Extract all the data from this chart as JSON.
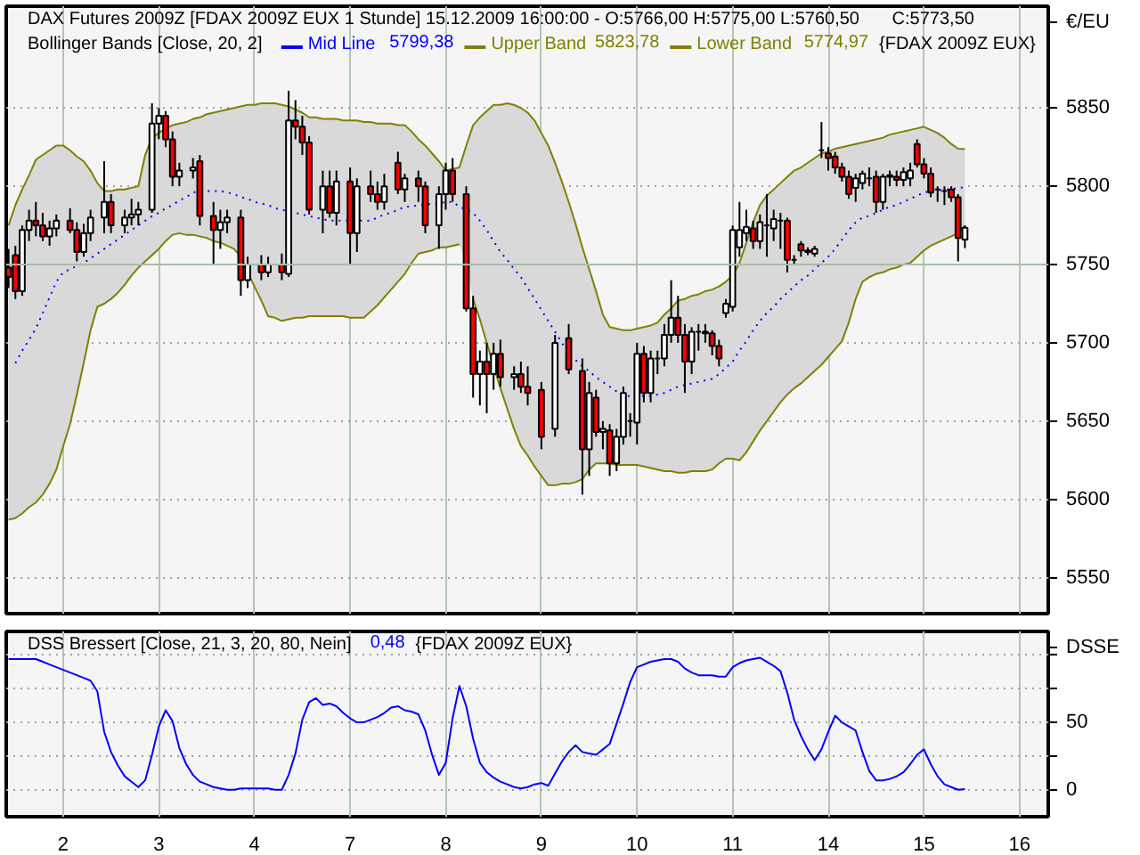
{
  "chart_data": [
    {
      "type": "candlestick",
      "title": "DAX Futures 2009Z [FDAX 2009Z EUX  1 Stunde] 15.12.2009 16:00:00 - O:5766,00 H:5775,00 L:5760,50",
      "subtitle": "Bollinger Bands [Close, 20, 2]",
      "ylabel": "€/EU",
      "annotations": [
        "C:5773,50",
        "5799,38",
        "5823,78",
        "5774,97",
        "{FDAX 2009Z EUX}"
      ],
      "categories": [
        null,
        null,
        null,
        null,
        null,
        null,
        null,
        null,
        "2",
        null,
        null,
        null,
        null,
        null,
        null,
        null,
        null,
        null,
        null,
        null,
        null,
        null,
        "3",
        null,
        null,
        null,
        null,
        null,
        null,
        null,
        null,
        null,
        null,
        null,
        null,
        null,
        "4",
        null,
        null,
        null,
        null,
        null,
        null,
        null,
        null,
        null,
        null,
        null,
        null,
        null,
        "7",
        null,
        null,
        null,
        null,
        null,
        null,
        null,
        null,
        null,
        null,
        null,
        null,
        null,
        "8",
        null,
        null,
        null,
        null,
        null,
        null,
        null,
        null,
        null,
        null,
        null,
        null,
        null,
        "9",
        null,
        null,
        null,
        null,
        null,
        null,
        null,
        null,
        null,
        null,
        null,
        null,
        null,
        "10",
        null,
        null,
        null,
        null,
        null,
        null,
        null,
        null,
        null,
        null,
        null,
        null,
        null,
        "11",
        null,
        null,
        null,
        null,
        null,
        null,
        null,
        null,
        null,
        null,
        null,
        null,
        null,
        "14",
        null,
        null,
        null,
        null,
        null,
        null,
        null,
        null,
        null,
        null,
        null,
        null,
        null,
        "15",
        null,
        null,
        null,
        null,
        null,
        null,
        null,
        null,
        null,
        null,
        null,
        null,
        null,
        "16",
        null,
        null,
        null
      ],
      "ohlc": [
        [
          5748,
          5760,
          5735,
          5742
        ],
        [
          5756,
          5762,
          5728,
          5733
        ],
        [
          5733,
          5775,
          5730,
          5772
        ],
        [
          5772,
          5785,
          5765,
          5778
        ],
        [
          5778,
          5790,
          5768,
          5775
        ],
        [
          5775,
          5783,
          5765,
          5768
        ],
        [
          5768,
          5778,
          5762,
          5773
        ],
        [
          5773,
          5782,
          5768,
          5778
        ],
        null,
        [
          5778,
          5786,
          5770,
          5772
        ],
        [
          5772,
          5777,
          5752,
          5758
        ],
        [
          5758,
          5776,
          5755,
          5770
        ],
        [
          5770,
          5785,
          5765,
          5780
        ],
        null,
        [
          5780,
          5816,
          5770,
          5790
        ],
        [
          5790,
          5795,
          5770,
          5775
        ],
        null,
        [
          5775,
          5785,
          5770,
          5780
        ],
        [
          5780,
          5792,
          5775,
          5782
        ],
        [
          5782,
          5790,
          5775,
          5785
        ],
        null,
        [
          5785,
          5853,
          5783,
          5840
        ],
        [
          5840,
          5850,
          5830,
          5845
        ],
        [
          5845,
          5848,
          5825,
          5830
        ],
        [
          5830,
          5835,
          5800,
          5806
        ],
        [
          5806,
          5815,
          5800,
          5810
        ],
        null,
        [
          5810,
          5818,
          5805,
          5812
        ],
        [
          5816,
          5820,
          5775,
          5781
        ],
        null,
        [
          5781,
          5790,
          5750,
          5772
        ],
        [
          5772,
          5785,
          5760,
          5777
        ],
        [
          5777,
          5785,
          5770,
          5780
        ],
        null,
        [
          5780,
          5785,
          5730,
          5740
        ],
        [
          5740,
          5755,
          5735,
          5750
        ],
        null,
        [
          5750,
          5756,
          5740,
          5745
        ],
        [
          5745,
          5755,
          5742,
          5750
        ],
        null,
        [
          5750,
          5757,
          5740,
          5745
        ],
        [
          5744,
          5861,
          5742,
          5842
        ],
        [
          5842,
          5855,
          5830,
          5838
        ],
        [
          5838,
          5845,
          5820,
          5828
        ],
        [
          5828,
          5832,
          5782,
          5785
        ],
        null,
        [
          5785,
          5810,
          5770,
          5800
        ],
        [
          5800,
          5810,
          5780,
          5783
        ],
        [
          5783,
          5810,
          5775,
          5803
        ],
        null,
        [
          5803,
          5812,
          5750,
          5770
        ],
        [
          5770,
          5805,
          5758,
          5800
        ],
        null,
        [
          5800,
          5810,
          5790,
          5795
        ],
        [
          5795,
          5803,
          5785,
          5790
        ],
        [
          5790,
          5808,
          5785,
          5800
        ],
        null,
        [
          5815,
          5822,
          5795,
          5798
        ],
        [
          5798,
          5808,
          5790,
          5805
        ],
        null,
        [
          5805,
          5810,
          5790,
          5800
        ],
        [
          5800,
          5803,
          5770,
          5775
        ],
        null,
        [
          5775,
          5800,
          5760,
          5795
        ],
        [
          5795,
          5815,
          5785,
          5810
        ],
        [
          5810,
          5818,
          5790,
          5795
        ],
        null,
        [
          5795,
          5800,
          5720,
          5722
        ],
        [
          5722,
          5730,
          5665,
          5680
        ],
        [
          5680,
          5695,
          5660,
          5688
        ],
        [
          5688,
          5700,
          5655,
          5680
        ],
        [
          5680,
          5700,
          5670,
          5693
        ],
        [
          5693,
          5702,
          5672,
          5678
        ],
        null,
        [
          5678,
          5685,
          5670,
          5680
        ],
        [
          5680,
          5688,
          5668,
          5672
        ],
        [
          5672,
          5685,
          5660,
          5668
        ],
        null,
        [
          5670,
          5675,
          5632,
          5640
        ],
        null,
        [
          5645,
          5705,
          5640,
          5700
        ],
        null,
        [
          5703,
          5712,
          5680,
          5683
        ],
        null,
        [
          5682,
          5690,
          5603,
          5632
        ],
        [
          5632,
          5675,
          5615,
          5668
        ],
        [
          5665,
          5670,
          5640,
          5643
        ],
        [
          5643,
          5650,
          5632,
          5645
        ],
        [
          5644,
          5648,
          5615,
          5623
        ],
        [
          5623,
          5645,
          5618,
          5640
        ],
        [
          5640,
          5672,
          5635,
          5668
        ],
        [
          5650,
          5655,
          5640,
          5650
        ],
        [
          5649,
          5700,
          5635,
          5693
        ],
        [
          5693,
          5698,
          5662,
          5668
        ],
        [
          5668,
          5695,
          5662,
          5690
        ],
        [
          5690,
          5695,
          5680,
          5690
        ],
        [
          5690,
          5712,
          5685,
          5705
        ],
        [
          5705,
          5740,
          5700,
          5716
        ],
        [
          5716,
          5730,
          5700,
          5705
        ],
        [
          5705,
          5712,
          5668,
          5688
        ],
        [
          5688,
          5710,
          5680,
          5707
        ],
        [
          5707,
          5712,
          5695,
          5707
        ],
        [
          5707,
          5712,
          5700,
          5706
        ],
        [
          5706,
          5708,
          5692,
          5698
        ],
        [
          5698,
          5702,
          5685,
          5690
        ],
        [
          5719,
          5728,
          5716,
          5725
        ],
        [
          5723,
          5775,
          5720,
          5772
        ],
        [
          5761,
          5790,
          5755,
          5772
        ],
        [
          5770,
          5785,
          5765,
          5774
        ],
        [
          5773,
          5778,
          5760,
          5765
        ],
        [
          5765,
          5782,
          5760,
          5777
        ],
        [
          5775,
          5795,
          5755,
          5775
        ],
        [
          5773,
          5785,
          5765,
          5779
        ],
        [
          5778,
          5783,
          5760,
          5778
        ],
        [
          5778,
          5780,
          5745,
          5753
        ],
        [
          5753,
          5756,
          5750,
          5753
        ],
        [
          5763,
          5765,
          5755,
          5759
        ],
        [
          5759,
          5761,
          5756,
          5758
        ],
        [
          5757,
          5762,
          5755,
          5760
        ],
        [
          5823,
          5841,
          5818,
          5823
        ],
        [
          5821,
          5825,
          5810,
          5818
        ],
        [
          5819,
          5822,
          5808,
          5812
        ],
        [
          5812,
          5815,
          5803,
          5806
        ],
        [
          5806,
          5810,
          5792,
          5795
        ],
        [
          5799,
          5808,
          5790,
          5805
        ],
        [
          5802,
          5810,
          5798,
          5808
        ],
        [
          5805,
          5812,
          5800,
          5805
        ],
        [
          5806,
          5810,
          5783,
          5790
        ],
        [
          5790,
          5808,
          5785,
          5806
        ],
        [
          5806,
          5810,
          5800,
          5807
        ],
        [
          5806,
          5810,
          5800,
          5804
        ],
        [
          5804,
          5812,
          5800,
          5809
        ],
        [
          5805,
          5815,
          5800,
          5810
        ],
        [
          5827,
          5830,
          5812,
          5814
        ],
        [
          5814,
          5818,
          5805,
          5808
        ],
        [
          5808,
          5812,
          5793,
          5796
        ],
        [
          5798,
          5800,
          5790,
          5798
        ],
        [
          5797,
          5800,
          5788,
          5797
        ],
        [
          5798,
          5800,
          5790,
          5793
        ],
        [
          5793,
          5795,
          5752,
          5767
        ],
        [
          5766,
          5775,
          5760.5,
          5773.5
        ],
        null,
        null,
        null,
        null,
        null,
        null,
        null,
        null,
        null,
        null,
        null
      ],
      "series": [
        {
          "name": "Mid Line",
          "type": "line",
          "color": "#0000ff",
          "line_style": "dotted",
          "values": [
            null,
            5687,
            5695,
            5702,
            5709,
            5719,
            5729,
            5739,
            5745,
            5747,
            5749,
            5751,
            5754,
            5757,
            5760,
            5763,
            5766,
            5769,
            5772,
            5775,
            5778,
            5781,
            5783,
            5786,
            5788,
            5791,
            5793,
            5796,
            5797,
            5797,
            5797,
            5797,
            5796,
            5795,
            5793,
            5792,
            5790,
            5789,
            5788,
            5786,
            5785,
            5784,
            5783,
            5782,
            5781,
            5780,
            5779,
            5778,
            5778,
            5778,
            5778,
            5778,
            5778,
            5778,
            5780,
            5782,
            5783,
            5785,
            5787,
            5787,
            5788,
            5788,
            5789,
            5789,
            5790,
            5790,
            5787,
            5785,
            5783,
            5778,
            5772,
            5765,
            5758,
            5753,
            5747,
            5742,
            5735,
            5728,
            5721,
            5714,
            5707,
            5700,
            5693,
            5689,
            5685,
            5682,
            5678,
            5675,
            5672,
            5669,
            5666,
            5666,
            5666,
            5666,
            5666,
            5667,
            5668,
            5670,
            5672,
            5673,
            5674,
            5675,
            5676,
            5677,
            5680,
            5684,
            5688,
            5695,
            5701,
            5708,
            5714,
            5719,
            5723,
            5728,
            5732,
            5736,
            5740,
            5743,
            5747,
            5751,
            5755,
            5760,
            5766,
            5772,
            5777,
            5780,
            5781,
            5783,
            5785,
            5787,
            5788,
            5790,
            5792,
            5794,
            5796,
            5797,
            5797,
            5798,
            5798,
            5799,
            5799.38,
            null,
            null,
            null,
            null,
            null,
            null,
            null,
            null,
            null,
            null,
            null
          ],
          "lower": [
            5587,
            5588,
            5591,
            5595,
            5598,
            5603,
            5610,
            5619,
            5634,
            5648,
            5667,
            5687,
            5708,
            5723,
            5725,
            5728,
            5732,
            5737,
            5743,
            5748,
            5752,
            5756,
            5760,
            5765,
            5769,
            5770,
            5769,
            5769,
            5768,
            5767,
            5765,
            5764,
            5762,
            5760,
            5755,
            5745,
            5736,
            5727,
            5717,
            5716,
            5714,
            5715,
            5716,
            5716,
            5717,
            5717,
            5717,
            5717,
            5717,
            5717,
            5716,
            5716,
            5716,
            5720,
            5724,
            5729,
            5734,
            5739,
            5744,
            5751,
            5757,
            5758,
            5759,
            5761,
            5761,
            5762,
            5763,
            5750,
            5728,
            5715,
            5700,
            5685,
            5671,
            5658,
            5645,
            5634,
            5628,
            5621,
            5615,
            5609,
            5609,
            5610,
            5610,
            5611,
            5613,
            5619,
            5623,
            5623,
            5623,
            5622,
            5622,
            5622,
            5622,
            5621,
            5620,
            5619,
            5618,
            5618,
            5617,
            5617,
            5618,
            5618,
            5618,
            5619,
            5623,
            5626,
            5626,
            5625,
            5630,
            5637,
            5644,
            5650,
            5656,
            5662,
            5667,
            5671,
            5674,
            5678,
            5682,
            5686,
            5691,
            5696,
            5701,
            5713,
            5728,
            5739,
            5742,
            5744,
            5745,
            5747,
            5748,
            5750,
            5751,
            5755,
            5759,
            5762,
            5764,
            5766,
            5768,
            5770,
            5774.97,
            null,
            null,
            null,
            null,
            null,
            null,
            null,
            null,
            null,
            null,
            null
          ],
          "upper": [
            5775,
            5788,
            5798,
            5807,
            5817,
            5820,
            5823,
            5826,
            5826,
            5823,
            5819,
            5816,
            5810,
            5802,
            5797,
            5797,
            5798,
            5798,
            5799,
            5800,
            5820,
            5831,
            5834,
            5837,
            5839,
            5840,
            5841,
            5843,
            5844,
            5846,
            5847,
            5848,
            5849,
            5850,
            5851,
            5852,
            5852,
            5853,
            5853,
            5853,
            5852,
            5851,
            5849,
            5847,
            5844,
            5844,
            5843,
            5843,
            5843,
            5842,
            5842,
            5842,
            5841,
            5841,
            5840,
            5840,
            5840,
            5839,
            5839,
            5835,
            5830,
            5826,
            5821,
            5816,
            5810,
            5811,
            5812,
            5826,
            5839,
            5844,
            5848,
            5852,
            5852,
            5853,
            5852,
            5850,
            5847,
            5842,
            5834,
            5826,
            5815,
            5803,
            5790,
            5776,
            5761,
            5747,
            5733,
            5718,
            5710,
            5709,
            5708,
            5708,
            5709,
            5710,
            5711,
            5713,
            5718,
            5722,
            5727,
            5728,
            5730,
            5731,
            5733,
            5734,
            5736,
            5739,
            5743,
            5751,
            5764,
            5777,
            5788,
            5794,
            5798,
            5802,
            5806,
            5810,
            5812,
            5815,
            5818,
            5821,
            5822,
            5824,
            5825,
            5826,
            5827,
            5828,
            5829,
            5830,
            5831,
            5833,
            5834,
            5835,
            5836,
            5837,
            5838,
            5836,
            5834,
            5831,
            5827,
            5824,
            5823.78,
            null,
            null,
            null,
            null,
            null,
            null,
            null,
            null,
            null,
            null,
            null
          ]
        },
        {
          "name": "Upper Band",
          "type": "line",
          "color": "#808000",
          "line_style": "solid",
          "values": [
            5775,
            5788,
            5798,
            5807,
            5817,
            5820,
            5823,
            5826,
            5826,
            5823,
            5819,
            5816,
            5810,
            5802,
            5797,
            5797,
            5798,
            5798,
            5799,
            5800,
            5820,
            5831,
            5834,
            5837,
            5839,
            5840,
            5841,
            5843,
            5844,
            5846,
            5847,
            5848,
            5849,
            5850,
            5851,
            5852,
            5852,
            5853,
            5853,
            5853,
            5852,
            5851,
            5849,
            5847,
            5844,
            5844,
            5843,
            5843,
            5843,
            5842,
            5842,
            5842,
            5841,
            5841,
            5840,
            5840,
            5840,
            5839,
            5839,
            5835,
            5830,
            5826,
            5821,
            5816,
            5810,
            5811,
            5812,
            5826,
            5839,
            5844,
            5848,
            5852,
            5852,
            5853,
            5852,
            5850,
            5847,
            5842,
            5834,
            5826,
            5815,
            5803,
            5790,
            5776,
            5761,
            5747,
            5733,
            5718,
            5710,
            5709,
            5708,
            5708,
            5709,
            5710,
            5711,
            5713,
            5718,
            5722,
            5727,
            5728,
            5730,
            5731,
            5733,
            5734,
            5736,
            5739,
            5743,
            5751,
            5764,
            5777,
            5788,
            5794,
            5798,
            5802,
            5806,
            5810,
            5812,
            5815,
            5818,
            5821,
            5822,
            5824,
            5825,
            5826,
            5827,
            5828,
            5829,
            5830,
            5831,
            5833,
            5834,
            5835,
            5836,
            5837,
            5838,
            5836,
            5834,
            5831,
            5827,
            5824,
            5823.78,
            null,
            null,
            null,
            null,
            null,
            null,
            null,
            null,
            null,
            null,
            null
          ]
        },
        {
          "name": "Lower Band",
          "type": "line",
          "color": "#808000",
          "line_style": "solid",
          "values": [
            5587,
            5588,
            5591,
            5595,
            5598,
            5603,
            5610,
            5619,
            5634,
            5648,
            5667,
            5687,
            5708,
            5723,
            5725,
            5728,
            5732,
            5737,
            5743,
            5748,
            5752,
            5756,
            5760,
            5765,
            5769,
            5770,
            5769,
            5769,
            5768,
            5767,
            5765,
            5764,
            5762,
            5760,
            5755,
            5745,
            5736,
            5727,
            5717,
            5716,
            5714,
            5715,
            5716,
            5716,
            5717,
            5717,
            5717,
            5717,
            5717,
            5717,
            5716,
            5716,
            5716,
            5720,
            5724,
            5729,
            5734,
            5739,
            5744,
            5751,
            5757,
            5758,
            5759,
            5761,
            5761,
            5762,
            5763,
            null,
            5728,
            5715,
            5700,
            5685,
            5671,
            5658,
            5645,
            5634,
            5628,
            5621,
            5615,
            5609,
            5609,
            5610,
            5610,
            5611,
            5613,
            5619,
            5623,
            5623,
            5623,
            5622,
            5622,
            5622,
            5622,
            5621,
            5620,
            5619,
            5618,
            5618,
            5617,
            5617,
            5618,
            5618,
            5618,
            5619,
            5623,
            5626,
            5626,
            5625,
            5630,
            5637,
            5644,
            5650,
            5656,
            5662,
            5667,
            5671,
            5674,
            5678,
            5682,
            5686,
            5691,
            5696,
            5701,
            5713,
            5728,
            5739,
            5742,
            5744,
            5745,
            5747,
            5748,
            5750,
            5751,
            5755,
            5759,
            5762,
            5764,
            5766,
            5768,
            5770,
            5774.97,
            null,
            null,
            null,
            null,
            null,
            null,
            null,
            null,
            null,
            null,
            null
          ]
        }
      ],
      "ylim": [
        5527,
        5915
      ],
      "yticks": [
        5550,
        5600,
        5650,
        5700,
        5750,
        5800,
        5850
      ],
      "ref_lines": [
        {
          "axis": "y",
          "value": 5750,
          "color": "#a8bca8"
        }
      ],
      "grid": true,
      "legend": "top left",
      "tick_labels": "y"
    },
    {
      "type": "line",
      "ylabel": "DSSE",
      "annotations": [
        "0,48",
        "{FDAX 2009Z EUX}"
      ],
      "categories": [
        null,
        null,
        null,
        null,
        null,
        null,
        null,
        null,
        "2",
        null,
        null,
        null,
        null,
        null,
        null,
        null,
        null,
        null,
        null,
        null,
        null,
        null,
        "3",
        null,
        null,
        null,
        null,
        null,
        null,
        null,
        null,
        null,
        null,
        null,
        null,
        null,
        "4",
        null,
        null,
        null,
        null,
        null,
        null,
        null,
        null,
        null,
        null,
        null,
        null,
        null,
        "7",
        null,
        null,
        null,
        null,
        null,
        null,
        null,
        null,
        null,
        null,
        null,
        null,
        null,
        "8",
        null,
        null,
        null,
        null,
        null,
        null,
        null,
        null,
        null,
        null,
        null,
        null,
        null,
        "9",
        null,
        null,
        null,
        null,
        null,
        null,
        null,
        null,
        null,
        null,
        null,
        null,
        null,
        "10",
        null,
        null,
        null,
        null,
        null,
        null,
        null,
        null,
        null,
        null,
        null,
        null,
        null,
        "11",
        null,
        null,
        null,
        null,
        null,
        null,
        null,
        null,
        null,
        null,
        null,
        null,
        null,
        "14",
        null,
        null,
        null,
        null,
        null,
        null,
        null,
        null,
        null,
        null,
        null,
        null,
        null,
        "15",
        null,
        null,
        null,
        null,
        null,
        null,
        null,
        null,
        null,
        null,
        null,
        null,
        null,
        "16",
        null,
        null,
        null
      ],
      "series": [
        {
          "name": "DSS Bressert [Close, 21, 3, 20, 80, Nein]",
          "color": "#0000ff",
          "line_style": "solid",
          "values": [
            97,
            97,
            97,
            97,
            97,
            95,
            93,
            91,
            89,
            87,
            85,
            83,
            81,
            73,
            43,
            28,
            18,
            10,
            6,
            2,
            7,
            26,
            47,
            59,
            51,
            31,
            19,
            11,
            6,
            4,
            2,
            1,
            0,
            0,
            1,
            1,
            1,
            1,
            1,
            0,
            0,
            11,
            27,
            52,
            65,
            68,
            63,
            64,
            62,
            57,
            53,
            50,
            50,
            52,
            54,
            57,
            61,
            62,
            59,
            58,
            56,
            44,
            26,
            11,
            20,
            53,
            77,
            62,
            38,
            20,
            13,
            9,
            6,
            4,
            2,
            1,
            2,
            4,
            5,
            3,
            12,
            21,
            28,
            33,
            28,
            27,
            26,
            30,
            34,
            49,
            64,
            80,
            91,
            93,
            95,
            96,
            97,
            97,
            95,
            90,
            87,
            85,
            85,
            85,
            84,
            84,
            91,
            94,
            96,
            97,
            98,
            95,
            92,
            88,
            72,
            52,
            40,
            30,
            22,
            30,
            43,
            55,
            50,
            47,
            44,
            28,
            14,
            7,
            7,
            8,
            10,
            13,
            19,
            26,
            30,
            19,
            10,
            4,
            2,
            0,
            0.48,
            null,
            null,
            null,
            null,
            null,
            null,
            null,
            null,
            null,
            null,
            null
          ]
        }
      ],
      "ylim": [
        -20,
        117.5
      ],
      "yticks": [
        0,
        {
          "value": 25,
          "label": null
        },
        50,
        {
          "value": 75,
          "label": null
        },
        {
          "value": 100,
          "label": null
        }
      ],
      "grid": true,
      "legend": "top left"
    }
  ]
}
